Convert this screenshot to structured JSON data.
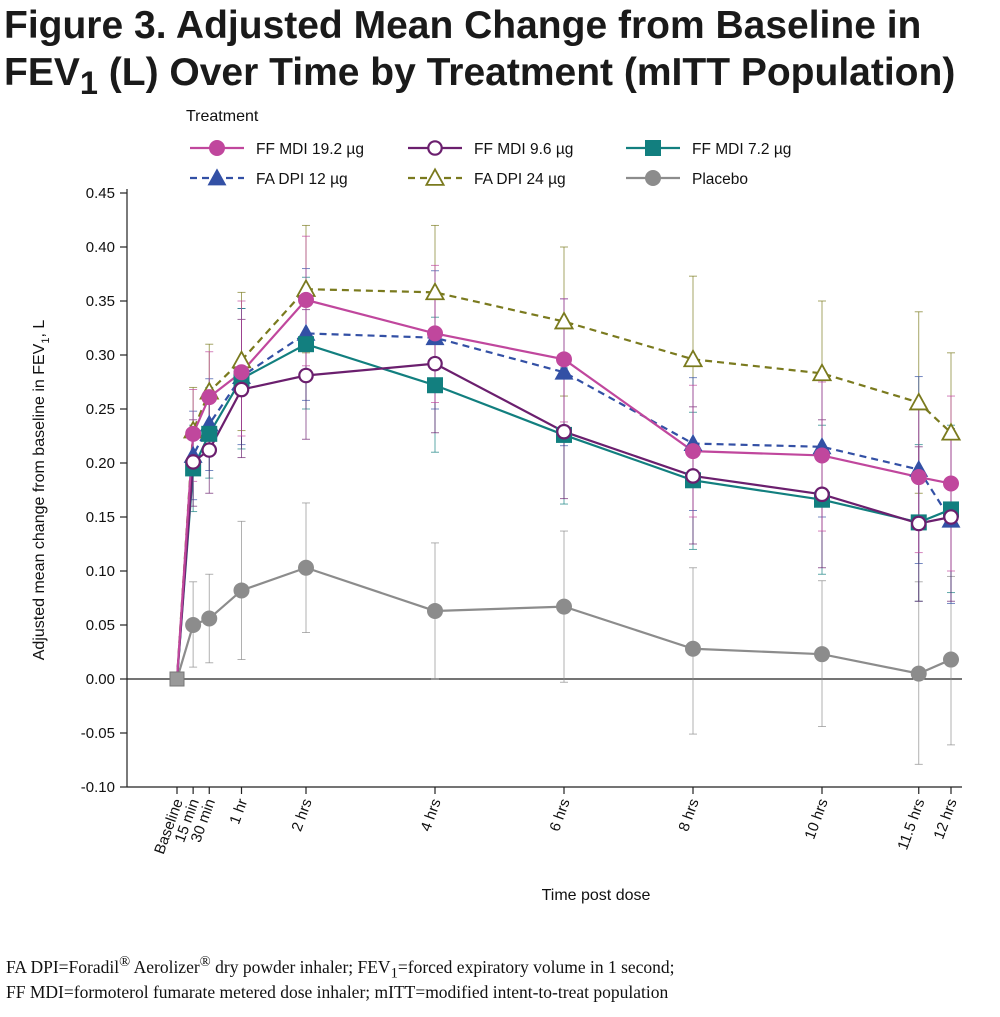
{
  "title": {
    "line1": "Figure 3. Adjusted Mean Change from Baseline in",
    "line2_pre": "FEV",
    "line2_sub": "1",
    "line2_post": " (L) Over Time by Treatment (mITT Population)"
  },
  "footnote": {
    "l1_a": "FA DPI=Foradil",
    "l1_reg1": "®",
    "l1_b": " Aerolizer",
    "l1_reg2": "®",
    "l1_c": " dry powder inhaler; FEV",
    "l1_sub": "1",
    "l1_d": "=forced expiratory volume in 1 second;",
    "line2": "FF MDI=formoterol fumarate metered dose inhaler; mITT=modified intent-to-treat population"
  },
  "chart_data": {
    "type": "line",
    "xlabel": "Time post dose",
    "ylabel_pre": "Adjusted mean change from baseline in FEV",
    "ylabel_sub": "1",
    "ylabel_post": ", L",
    "legend_title": "Treatment",
    "legend_placement": "top",
    "ylim": [
      -0.1,
      0.45
    ],
    "yticks": [
      -0.1,
      -0.05,
      0.0,
      0.05,
      0.1,
      0.15,
      0.2,
      0.25,
      0.3,
      0.35,
      0.4,
      0.45
    ],
    "ytick_labels": [
      "-0.10",
      "-0.05",
      "0.00",
      "0.05",
      "0.10",
      "0.15",
      "0.20",
      "0.25",
      "0.30",
      "0.35",
      "0.40",
      "0.45"
    ],
    "x_hours": [
      0,
      0.25,
      0.5,
      1,
      2,
      4,
      6,
      8,
      10,
      11.5,
      12
    ],
    "x_labels": [
      "Baseline",
      "15 min",
      "30 min",
      "1 hr",
      "2 hrs",
      "4 hrs",
      "6 hrs",
      "8 hrs",
      "10 hrs",
      "11.5 hrs",
      "12 hrs"
    ],
    "grid": false,
    "series": [
      {
        "name": "FF MDI 19.2 µg",
        "color": "#c0479d",
        "marker": "circle-filled",
        "dash": "solid",
        "values": [
          0.0,
          0.227,
          0.261,
          0.284,
          0.351,
          0.32,
          0.296,
          0.211,
          0.207,
          0.187,
          0.181
        ],
        "upper": [
          0.0,
          0.268,
          0.303,
          0.35,
          0.41,
          0.383,
          0.352,
          0.272,
          0.275,
          0.258,
          0.262
        ],
        "lower": [
          0.0,
          0.183,
          0.22,
          0.225,
          0.29,
          0.256,
          0.238,
          0.15,
          0.137,
          0.117,
          0.1
        ]
      },
      {
        "name": "FF MDI 9.6 µg",
        "color": "#6b1f6e",
        "marker": "circle-open",
        "dash": "solid",
        "values": [
          0.0,
          0.201,
          0.212,
          0.268,
          0.281,
          0.292,
          0.229,
          0.188,
          0.171,
          0.144,
          0.15
        ],
        "upper": [
          0.0,
          0.24,
          0.255,
          0.333,
          0.342,
          0.355,
          0.29,
          0.252,
          0.24,
          0.215,
          0.228
        ],
        "lower": [
          0.0,
          0.16,
          0.172,
          0.205,
          0.222,
          0.228,
          0.167,
          0.125,
          0.103,
          0.072,
          0.072
        ]
      },
      {
        "name": "FF MDI 7.2 µg",
        "color": "#127f7f",
        "marker": "square",
        "dash": "solid",
        "values": [
          0.0,
          0.195,
          0.227,
          0.278,
          0.31,
          0.272,
          0.226,
          0.184,
          0.166,
          0.145,
          0.157
        ],
        "upper": [
          0.0,
          0.235,
          0.27,
          0.343,
          0.372,
          0.335,
          0.288,
          0.247,
          0.235,
          0.217,
          0.235
        ],
        "lower": [
          0.0,
          0.155,
          0.186,
          0.213,
          0.25,
          0.21,
          0.162,
          0.12,
          0.097,
          0.072,
          0.08
        ]
      },
      {
        "name": "FA DPI 12 µg",
        "color": "#3350a5",
        "marker": "triangle-filled",
        "dash": "dashed",
        "values": [
          0.0,
          0.207,
          0.236,
          0.28,
          0.32,
          0.316,
          0.284,
          0.218,
          0.215,
          0.194,
          0.147
        ],
        "upper": [
          0.0,
          0.248,
          0.278,
          0.343,
          0.38,
          0.378,
          0.352,
          0.279,
          0.278,
          0.28,
          0.232
        ],
        "lower": [
          0.0,
          0.166,
          0.193,
          0.217,
          0.258,
          0.25,
          0.216,
          0.156,
          0.15,
          0.107,
          0.07
        ]
      },
      {
        "name": "FA DPI 24 µg",
        "color": "#7a7a1e",
        "marker": "triangle-open",
        "dash": "dashed",
        "values": [
          0.0,
          0.23,
          0.266,
          0.295,
          0.361,
          0.358,
          0.331,
          0.296,
          0.283,
          0.256,
          0.228
        ],
        "upper": [
          0.0,
          0.27,
          0.31,
          0.358,
          0.42,
          0.42,
          0.4,
          0.373,
          0.35,
          0.34,
          0.302
        ],
        "lower": [
          0.0,
          0.19,
          0.222,
          0.23,
          0.302,
          0.295,
          0.262,
          0.22,
          0.214,
          0.172,
          0.153
        ]
      },
      {
        "name": "Placebo",
        "color": "#8c8c8c",
        "marker": "circle-filled",
        "dash": "solid",
        "values": [
          0.0,
          0.05,
          0.056,
          0.082,
          0.103,
          0.063,
          0.067,
          0.028,
          0.023,
          0.005,
          0.018
        ],
        "upper": [
          0.0,
          0.09,
          0.097,
          0.146,
          0.163,
          0.126,
          0.137,
          0.103,
          0.091,
          0.09,
          0.095
        ],
        "lower": [
          0.0,
          0.011,
          0.015,
          0.018,
          0.043,
          0.0,
          -0.003,
          -0.051,
          -0.044,
          -0.079,
          -0.061
        ]
      }
    ]
  }
}
